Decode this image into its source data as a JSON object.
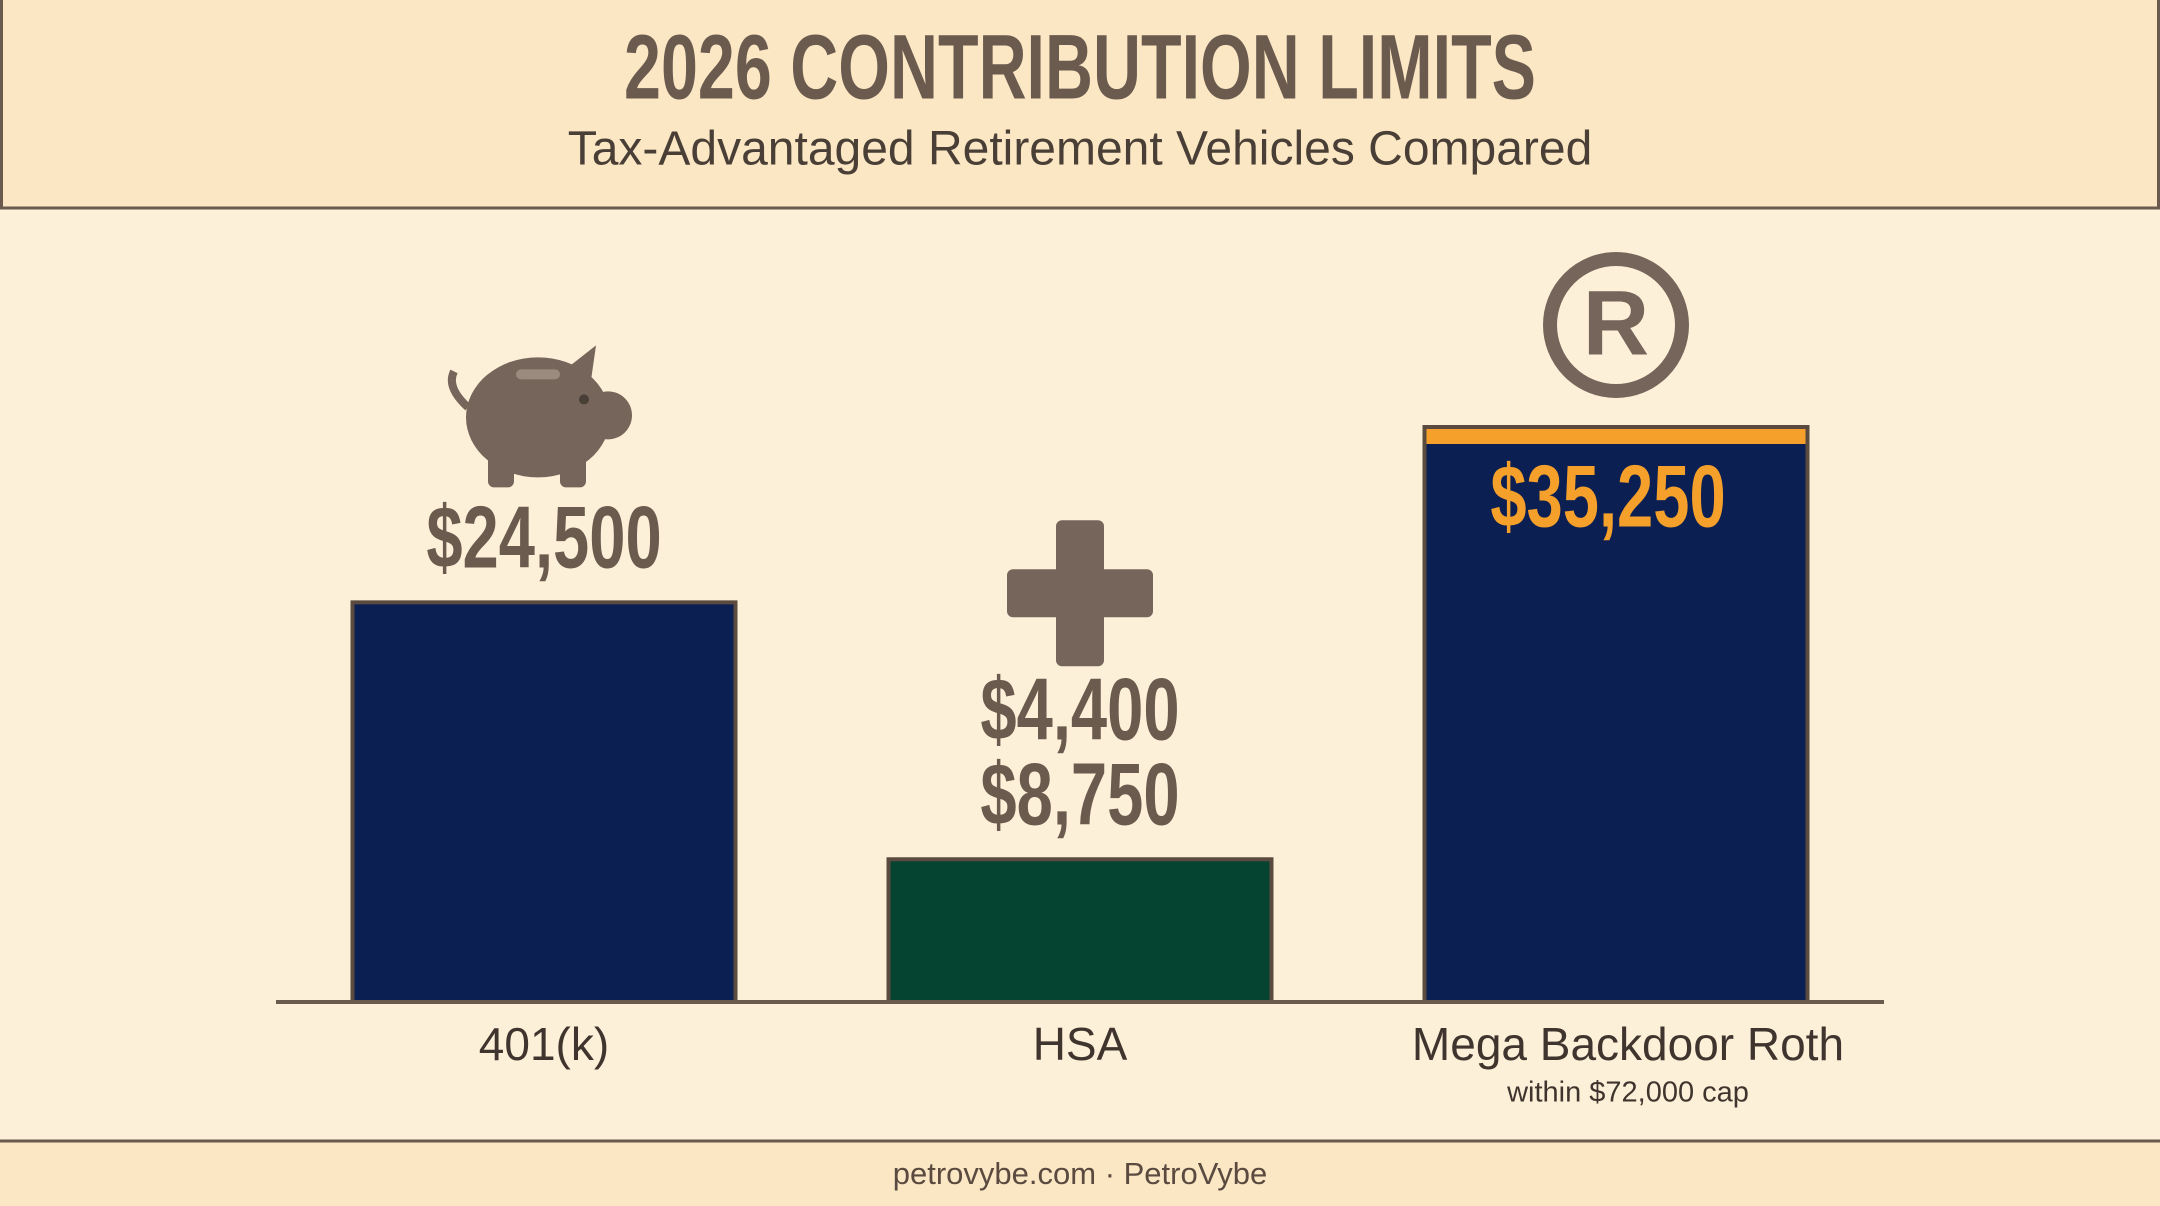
{
  "chart_data": {
    "type": "bar",
    "title": "2026 CONTRIBUTION LIMITS",
    "subtitle": "Tax-Advantaged Retirement Vehicles Compared",
    "categories": [
      "401(k)",
      "HSA",
      "Mega Backdoor Roth"
    ],
    "category_notes": [
      null,
      null,
      "within $72,000 cap"
    ],
    "values": [
      24500,
      8750,
      35250
    ],
    "value_labels": [
      "$24,500",
      "$8,750",
      "$35,250"
    ],
    "secondary_values": [
      null,
      4400,
      null
    ],
    "secondary_value_labels": [
      null,
      "$4,400",
      null
    ],
    "colors": [
      "#0c1f52",
      "#054430",
      "#0c1f52"
    ],
    "label_inside": [
      false,
      false,
      true
    ],
    "highlight_color": "#f5a02a",
    "footer": "petrovybe.com · PetroVybe"
  }
}
